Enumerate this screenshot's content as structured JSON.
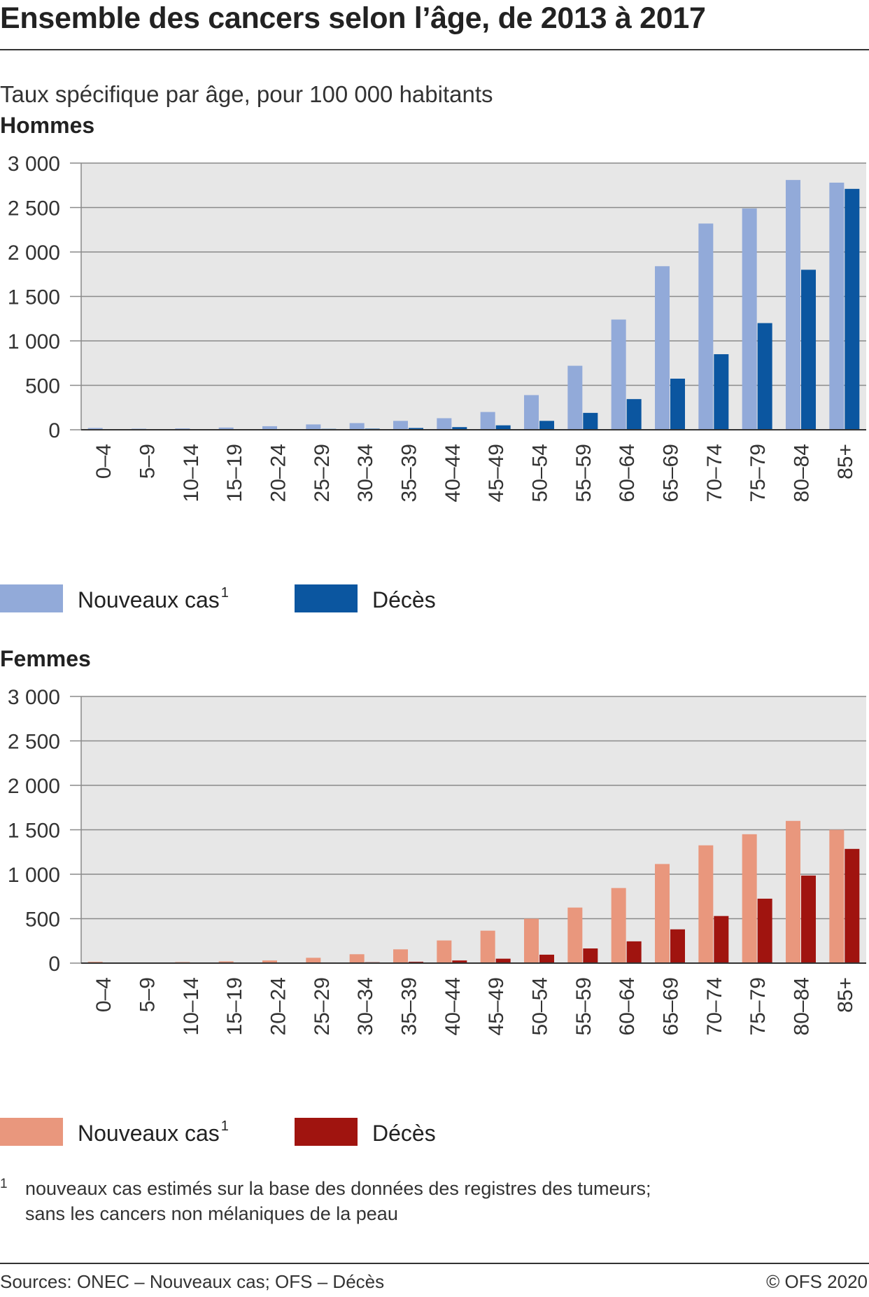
{
  "title": "Ensemble des cancers selon l’âge, de 2013 à 2017",
  "subtitle": "Taux spécifique par âge, pour 100 000 habitants",
  "footnote": {
    "mark": "1",
    "line1": "nouveaux cas estimés sur la base des données des registres des tumeurs;",
    "line2": "sans les cancers non mélaniques de la peau"
  },
  "sources": "Sources: ONEC – Nouveaux cas; OFS – Décès",
  "copyright": "© OFS 2020",
  "chart_data": [
    {
      "type": "bar",
      "title": "Hommes",
      "categories": [
        "0–4",
        "5–9",
        "10–14",
        "15–19",
        "20–24",
        "25–29",
        "30–34",
        "35–39",
        "40–44",
        "45–49",
        "50–54",
        "55–59",
        "60–64",
        "65–69",
        "70–74",
        "75–79",
        "80–84",
        "85+"
      ],
      "y_ticks": [
        "0",
        "500",
        "1 000",
        "1 500",
        "2 000",
        "2 500",
        "3 000"
      ],
      "ylim": [
        0,
        3000
      ],
      "grid": true,
      "legend_position": "bottom-left",
      "series": [
        {
          "name": "Nouveaux cas",
          "name_sup": "1",
          "color": "#92aad9",
          "values": [
            20,
            12,
            15,
            25,
            40,
            60,
            75,
            100,
            130,
            200,
            390,
            720,
            1240,
            1840,
            2320,
            2490,
            2810,
            2780
          ]
        },
        {
          "name": "Décès",
          "name_sup": "",
          "color": "#0b56a0",
          "values": [
            3,
            2,
            3,
            5,
            8,
            10,
            12,
            20,
            30,
            50,
            100,
            190,
            345,
            575,
            850,
            1200,
            1800,
            2710
          ]
        }
      ]
    },
    {
      "type": "bar",
      "title": "Femmes",
      "categories": [
        "0–4",
        "5–9",
        "10–14",
        "15–19",
        "20–24",
        "25–29",
        "30–34",
        "35–39",
        "40–44",
        "45–49",
        "50–54",
        "55–59",
        "60–64",
        "65–69",
        "70–74",
        "75–79",
        "80–84",
        "85+"
      ],
      "y_ticks": [
        "0",
        "500",
        "1 000",
        "1 500",
        "2 000",
        "2 500",
        "3 000"
      ],
      "ylim": [
        0,
        3000
      ],
      "grid": true,
      "legend_position": "bottom-left",
      "series": [
        {
          "name": "Nouveaux cas",
          "name_sup": "1",
          "color": "#e9977d",
          "values": [
            15,
            8,
            12,
            20,
            30,
            60,
            100,
            155,
            255,
            365,
            500,
            625,
            845,
            1115,
            1325,
            1450,
            1600,
            1500
          ]
        },
        {
          "name": "Décès",
          "name_sup": "",
          "color": "#a0140f",
          "values": [
            3,
            2,
            2,
            3,
            5,
            8,
            10,
            15,
            30,
            50,
            95,
            165,
            245,
            380,
            530,
            725,
            985,
            1285
          ]
        }
      ]
    }
  ]
}
